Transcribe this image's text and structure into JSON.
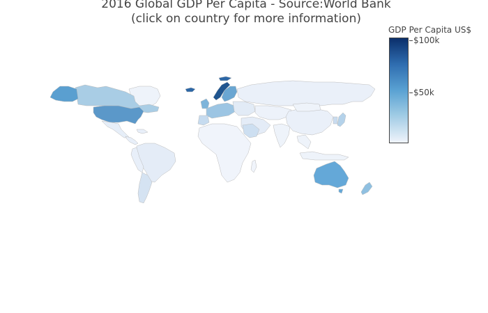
{
  "title": {
    "line1": "2016 Global GDP Per Capita - Source:World Bank",
    "line2": "(click on country for more information)"
  },
  "colorbar": {
    "title": "GDP Per Capita US$",
    "ticks": [
      {
        "label": "$100k",
        "value": 100000
      },
      {
        "label": "$50k",
        "value": 50000
      }
    ],
    "colors": [
      "#f0f4fb",
      "#9ac8e3",
      "#5aa2d3",
      "#2f6db0",
      "#0b2f6b"
    ]
  },
  "countries": [
    {
      "name": "United States",
      "value": "high"
    },
    {
      "name": "Alaska (United States)",
      "value": "high"
    },
    {
      "name": "Canada",
      "value": "mid"
    },
    {
      "name": "Greenland",
      "value": "very-low"
    },
    {
      "name": "Mexico",
      "value": "low"
    },
    {
      "name": "Central America",
      "value": "low"
    },
    {
      "name": "Brazil",
      "value": "low"
    },
    {
      "name": "Argentina",
      "value": "low-mid"
    },
    {
      "name": "Chile",
      "value": "low-mid"
    },
    {
      "name": "Andean countries",
      "value": "low"
    },
    {
      "name": "Norway",
      "value": "very-high"
    },
    {
      "name": "Sweden",
      "value": "high"
    },
    {
      "name": "Finland",
      "value": "mid-high"
    },
    {
      "name": "Iceland",
      "value": "very-high"
    },
    {
      "name": "United Kingdom",
      "value": "mid"
    },
    {
      "name": "Ireland",
      "value": "high"
    },
    {
      "name": "Western Europe",
      "value": "mid"
    },
    {
      "name": "Eastern Europe",
      "value": "low"
    },
    {
      "name": "Russia",
      "value": "very-low"
    },
    {
      "name": "Kazakhstan & Central Asia",
      "value": "very-low"
    },
    {
      "name": "Middle East",
      "value": "low"
    },
    {
      "name": "Saudi Arabia",
      "value": "low-mid"
    },
    {
      "name": "Africa",
      "value": "very-low"
    },
    {
      "name": "India",
      "value": "very-low"
    },
    {
      "name": "China",
      "value": "very-low"
    },
    {
      "name": "Mongolia",
      "value": "very-low"
    },
    {
      "name": "Japan",
      "value": "mid"
    },
    {
      "name": "Southeast Asia",
      "value": "very-low"
    },
    {
      "name": "Australia",
      "value": "high"
    },
    {
      "name": "New Zealand",
      "value": "mid-high"
    }
  ]
}
